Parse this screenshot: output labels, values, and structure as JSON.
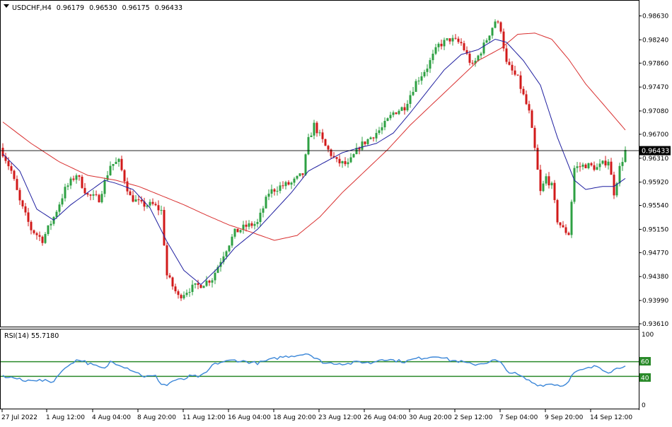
{
  "header": {
    "menu_icon": "triangle-down-icon",
    "symbol_tf": "USDCHF,H4",
    "open": "0.96179",
    "high": "0.96530",
    "low": "0.96175",
    "close": "0.96433"
  },
  "price_axis": {
    "labels": [
      "0.98630",
      "0.98240",
      "0.97860",
      "0.97470",
      "0.97080",
      "0.96700",
      "0.96310",
      "0.95920",
      "0.95540",
      "0.95150",
      "0.94770",
      "0.94380",
      "0.93990",
      "0.93610"
    ],
    "current_price": "0.96433"
  },
  "rsi_panel": {
    "title": "RSI(14) 55.7180",
    "levels": [
      "100",
      "60",
      "40",
      "0"
    ]
  },
  "time_axis": {
    "labels": [
      "27 Jul 2022",
      "1 Aug 12:00",
      "4 Aug 04:00",
      "8 Aug 20:00",
      "11 Aug 12:00",
      "16 Aug 04:00",
      "18 Aug 20:00",
      "23 Aug 12:00",
      "26 Aug 04:00",
      "30 Aug 20:00",
      "2 Sep 12:00",
      "7 Sep 04:00",
      "9 Sep 20:00",
      "14 Sep 12:00"
    ]
  },
  "colors": {
    "bull": "#2ea043",
    "bear": "#d11a1a",
    "ma_fast": "#1f1fa0",
    "ma_slow": "#d93030",
    "rsi": "#3a86d8",
    "rsi_levels": "#2a8a2a",
    "grid": "#000000",
    "price_tag_bg": "#000000",
    "price_tag_text": "#ffffff"
  },
  "chart_data": {
    "type": "candlestick",
    "ylim": [
      0.9361,
      0.9882
    ],
    "anchors": [
      [
        0,
        0.964
      ],
      [
        3,
        0.961
      ],
      [
        6,
        0.956
      ],
      [
        10,
        0.9515
      ],
      [
        14,
        0.9498
      ],
      [
        18,
        0.9535
      ],
      [
        22,
        0.958
      ],
      [
        26,
        0.9605
      ],
      [
        30,
        0.957
      ],
      [
        34,
        0.9565
      ],
      [
        38,
        0.962
      ],
      [
        41,
        0.9625
      ],
      [
        45,
        0.9568
      ],
      [
        49,
        0.9555
      ],
      [
        53,
        0.9555
      ],
      [
        56,
        0.9545
      ],
      [
        58,
        0.944
      ],
      [
        62,
        0.9405
      ],
      [
        66,
        0.9418
      ],
      [
        70,
        0.9425
      ],
      [
        74,
        0.9435
      ],
      [
        78,
        0.9475
      ],
      [
        82,
        0.951
      ],
      [
        86,
        0.952
      ],
      [
        90,
        0.9525
      ],
      [
        94,
        0.9575
      ],
      [
        98,
        0.9585
      ],
      [
        102,
        0.959
      ],
      [
        106,
        0.9605
      ],
      [
        108,
        0.966
      ],
      [
        110,
        0.9685
      ],
      [
        114,
        0.965
      ],
      [
        118,
        0.9625
      ],
      [
        122,
        0.962
      ],
      [
        126,
        0.965
      ],
      [
        130,
        0.9665
      ],
      [
        134,
        0.968
      ],
      [
        138,
        0.9705
      ],
      [
        142,
        0.9715
      ],
      [
        146,
        0.9755
      ],
      [
        150,
        0.978
      ],
      [
        154,
        0.9815
      ],
      [
        158,
        0.9825
      ],
      [
        162,
        0.9818
      ],
      [
        166,
        0.978
      ],
      [
        170,
        0.9815
      ],
      [
        174,
        0.9855
      ],
      [
        176,
        0.9842
      ],
      [
        178,
        0.9785
      ],
      [
        182,
        0.976
      ],
      [
        186,
        0.9705
      ],
      [
        188,
        0.9645
      ],
      [
        190,
        0.9575
      ],
      [
        192,
        0.96
      ],
      [
        194,
        0.9585
      ],
      [
        196,
        0.953
      ],
      [
        198,
        0.9515
      ],
      [
        200,
        0.9508
      ],
      [
        202,
        0.9615
      ],
      [
        206,
        0.962
      ],
      [
        210,
        0.9615
      ],
      [
        214,
        0.9628
      ],
      [
        216,
        0.9575
      ],
      [
        218,
        0.9615
      ],
      [
        220,
        0.9643
      ]
    ],
    "ma_fast_anchors": [
      [
        0,
        0.9638
      ],
      [
        6,
        0.961
      ],
      [
        12,
        0.9548
      ],
      [
        18,
        0.953
      ],
      [
        24,
        0.9555
      ],
      [
        30,
        0.9575
      ],
      [
        36,
        0.9595
      ],
      [
        40,
        0.959
      ],
      [
        46,
        0.958
      ],
      [
        52,
        0.955
      ],
      [
        58,
        0.9495
      ],
      [
        64,
        0.9448
      ],
      [
        70,
        0.9425
      ],
      [
        76,
        0.9452
      ],
      [
        82,
        0.9485
      ],
      [
        90,
        0.9515
      ],
      [
        96,
        0.9545
      ],
      [
        102,
        0.9575
      ],
      [
        108,
        0.961
      ],
      [
        114,
        0.9625
      ],
      [
        120,
        0.964
      ],
      [
        126,
        0.9648
      ],
      [
        132,
        0.9655
      ],
      [
        138,
        0.9672
      ],
      [
        144,
        0.9705
      ],
      [
        150,
        0.974
      ],
      [
        156,
        0.9775
      ],
      [
        162,
        0.98
      ],
      [
        168,
        0.9808
      ],
      [
        174,
        0.9825
      ],
      [
        178,
        0.982
      ],
      [
        184,
        0.979
      ],
      [
        190,
        0.975
      ],
      [
        196,
        0.9665
      ],
      [
        202,
        0.9595
      ],
      [
        206,
        0.958
      ],
      [
        212,
        0.9585
      ],
      [
        216,
        0.9585
      ],
      [
        220,
        0.9598
      ]
    ],
    "ma_slow_anchors": [
      [
        0,
        0.969
      ],
      [
        10,
        0.9655
      ],
      [
        20,
        0.9625
      ],
      [
        30,
        0.9603
      ],
      [
        40,
        0.9595
      ],
      [
        48,
        0.9585
      ],
      [
        56,
        0.957
      ],
      [
        64,
        0.9555
      ],
      [
        72,
        0.9538
      ],
      [
        80,
        0.9522
      ],
      [
        88,
        0.951
      ],
      [
        96,
        0.9497
      ],
      [
        104,
        0.9505
      ],
      [
        112,
        0.9535
      ],
      [
        120,
        0.9575
      ],
      [
        128,
        0.961
      ],
      [
        136,
        0.9645
      ],
      [
        144,
        0.9685
      ],
      [
        152,
        0.972
      ],
      [
        160,
        0.9755
      ],
      [
        168,
        0.979
      ],
      [
        176,
        0.981
      ],
      [
        182,
        0.9833
      ],
      [
        188,
        0.9835
      ],
      [
        194,
        0.9825
      ],
      [
        200,
        0.9792
      ],
      [
        206,
        0.9752
      ],
      [
        212,
        0.972
      ],
      [
        220,
        0.9677
      ]
    ],
    "rsi_ylim": [
      0,
      100
    ],
    "rsi_levels": [
      60,
      40
    ],
    "rsi_anchors": [
      [
        0,
        40
      ],
      [
        4,
        38
      ],
      [
        8,
        33
      ],
      [
        10,
        36
      ],
      [
        14,
        34
      ],
      [
        18,
        33
      ],
      [
        20,
        45
      ],
      [
        22,
        50
      ],
      [
        24,
        58
      ],
      [
        26,
        62
      ],
      [
        28,
        62
      ],
      [
        30,
        58
      ],
      [
        32,
        55
      ],
      [
        36,
        50
      ],
      [
        38,
        60
      ],
      [
        40,
        58
      ],
      [
        42,
        55
      ],
      [
        46,
        48
      ],
      [
        50,
        40
      ],
      [
        54,
        40
      ],
      [
        56,
        30
      ],
      [
        58,
        28
      ],
      [
        60,
        34
      ],
      [
        64,
        36
      ],
      [
        66,
        40
      ],
      [
        70,
        40
      ],
      [
        72,
        45
      ],
      [
        74,
        55
      ],
      [
        76,
        58
      ],
      [
        78,
        60
      ],
      [
        82,
        62
      ],
      [
        86,
        60
      ],
      [
        90,
        58
      ],
      [
        94,
        62
      ],
      [
        98,
        66
      ],
      [
        102,
        68
      ],
      [
        106,
        70
      ],
      [
        108,
        72
      ],
      [
        110,
        65
      ],
      [
        114,
        58
      ],
      [
        118,
        58
      ],
      [
        122,
        57
      ],
      [
        126,
        60
      ],
      [
        130,
        58
      ],
      [
        134,
        64
      ],
      [
        138,
        62
      ],
      [
        142,
        60
      ],
      [
        146,
        64
      ],
      [
        150,
        66
      ],
      [
        154,
        68
      ],
      [
        158,
        62
      ],
      [
        162,
        60
      ],
      [
        166,
        56
      ],
      [
        170,
        58
      ],
      [
        174,
        62
      ],
      [
        176,
        58
      ],
      [
        178,
        48
      ],
      [
        182,
        42
      ],
      [
        186,
        34
      ],
      [
        188,
        30
      ],
      [
        190,
        28
      ],
      [
        194,
        30
      ],
      [
        198,
        27
      ],
      [
        200,
        35
      ],
      [
        202,
        45
      ],
      [
        206,
        50
      ],
      [
        210,
        54
      ],
      [
        214,
        46
      ],
      [
        218,
        52
      ],
      [
        220,
        56
      ]
    ],
    "seed": 7
  }
}
